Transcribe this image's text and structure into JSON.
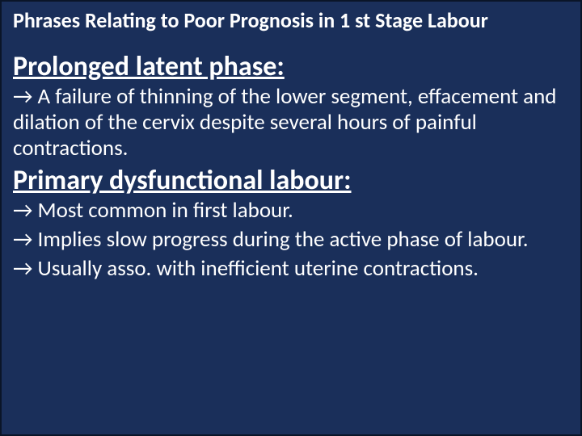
{
  "slide": {
    "background_color": "#1a2f5a",
    "border_color": "#0a1528",
    "text_color": "#ffffff",
    "font_family": "Calibri",
    "title": {
      "text": "Phrases Relating to Poor Prognosis in 1 st Stage Labour",
      "fontsize": 26,
      "weight": 700
    },
    "sections": [
      {
        "heading": "Prolonged latent phase:",
        "heading_fontsize": 34,
        "heading_weight": 700,
        "heading_underline": true,
        "lines": [
          "→ A failure of thinning of the lower segment, effacement and dilation of the cervix despite several hours of painful contractions."
        ],
        "body_fontsize": 27
      },
      {
        "heading": "Primary dysfunctional labour:",
        "heading_fontsize": 34,
        "heading_weight": 700,
        "heading_underline": true,
        "lines": [
          "→ Most common in first labour.",
          "→ Implies slow progress during the active phase of labour.",
          "→ Usually asso. with inefficient uterine contractions."
        ],
        "body_fontsize": 27
      }
    ]
  }
}
